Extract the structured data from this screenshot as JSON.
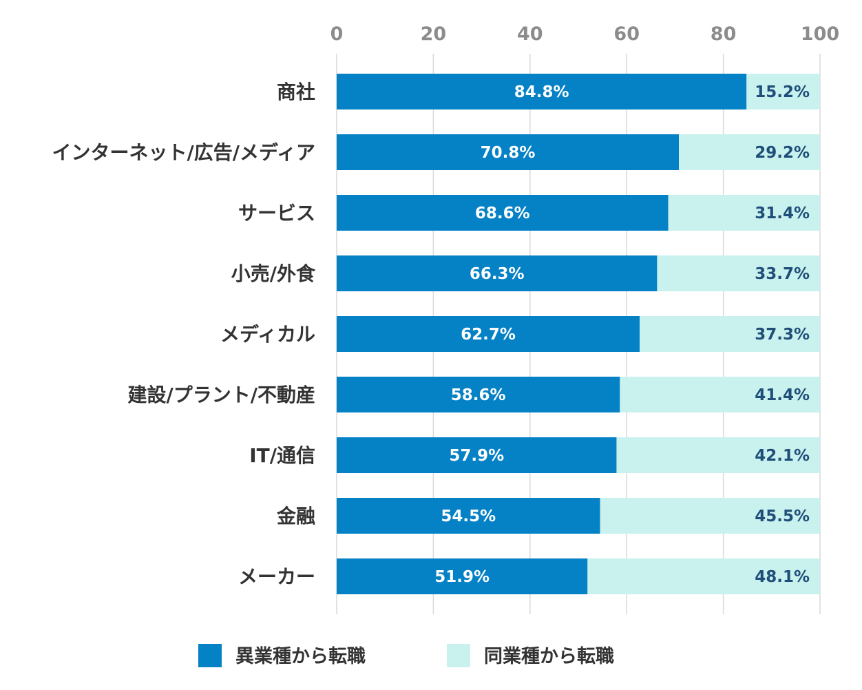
{
  "chart_data": {
    "type": "bar",
    "orientation": "horizontal",
    "stacked": true,
    "categories": [
      "商社",
      "インターネット/広告/メディア",
      "サービス",
      "小売/外食",
      "メディカル",
      "建設/プラント/不動産",
      "IT/通信",
      "金融",
      "メーカー"
    ],
    "series": [
      {
        "name": "異業種から転職",
        "color": "#0581c5",
        "values": [
          84.8,
          70.8,
          68.6,
          66.3,
          62.7,
          58.6,
          57.9,
          54.5,
          51.9
        ],
        "labels": [
          "84.8%",
          "70.8%",
          "68.6%",
          "66.3%",
          "62.7%",
          "58.6%",
          "57.9%",
          "54.5%",
          "51.9%"
        ]
      },
      {
        "name": "同業種から転職",
        "color": "#c9f1ee",
        "values": [
          15.2,
          29.2,
          31.4,
          33.7,
          37.3,
          41.4,
          42.1,
          45.5,
          48.1
        ],
        "labels": [
          "15.2%",
          "29.2%",
          "31.4%",
          "33.7%",
          "37.3%",
          "41.4%",
          "42.1%",
          "45.5%",
          "48.1%"
        ]
      }
    ],
    "xlim": [
      0,
      100
    ],
    "x_ticks": [
      0,
      20,
      40,
      60,
      80,
      100
    ],
    "x_tick_labels": [
      "0",
      "20",
      "40",
      "60",
      "80",
      "100"
    ],
    "x_axis_position": "top",
    "grid": true,
    "legend_position": "bottom"
  }
}
